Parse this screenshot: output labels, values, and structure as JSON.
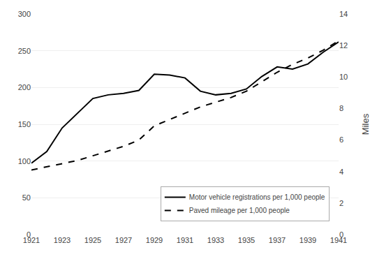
{
  "chart_data": {
    "type": "line",
    "x": [
      1921,
      1922,
      1923,
      1924,
      1925,
      1926,
      1927,
      1928,
      1929,
      1930,
      1931,
      1932,
      1933,
      1934,
      1935,
      1936,
      1937,
      1938,
      1939,
      1940,
      1941
    ],
    "series": [
      {
        "name": "Motor vehicle registrations per 1,000 people",
        "color": "#000000",
        "line_style": "solid",
        "values": [
          97,
          113,
          145,
          165,
          185,
          190,
          192,
          196,
          218,
          217,
          213,
          195,
          190,
          192,
          198,
          215,
          228,
          225,
          232,
          248,
          262
        ]
      },
      {
        "name": "Paved mileage per 1,000 people",
        "color": "#000000",
        "line_style": "dashed",
        "axis": "y2",
        "values": [
          4.1,
          4.3,
          4.5,
          4.7,
          5.0,
          5.3,
          5.6,
          6.0,
          6.9,
          7.3,
          7.7,
          8.1,
          8.4,
          8.7,
          9.1,
          9.7,
          10.3,
          10.8,
          11.2,
          11.7,
          12.3
        ]
      }
    ],
    "xlim": [
      1921,
      1941
    ],
    "xticks": [
      1921,
      1923,
      1925,
      1927,
      1929,
      1931,
      1933,
      1935,
      1937,
      1939,
      1941
    ],
    "ylim": [
      0,
      300
    ],
    "yticks": [
      0,
      50,
      100,
      150,
      200,
      250,
      300
    ],
    "y2lim": [
      0,
      14
    ],
    "y2ticks": [
      0,
      2,
      4,
      6,
      8,
      10,
      12,
      14
    ],
    "y2label": "Miles",
    "grid": true,
    "legend": "lower right"
  }
}
